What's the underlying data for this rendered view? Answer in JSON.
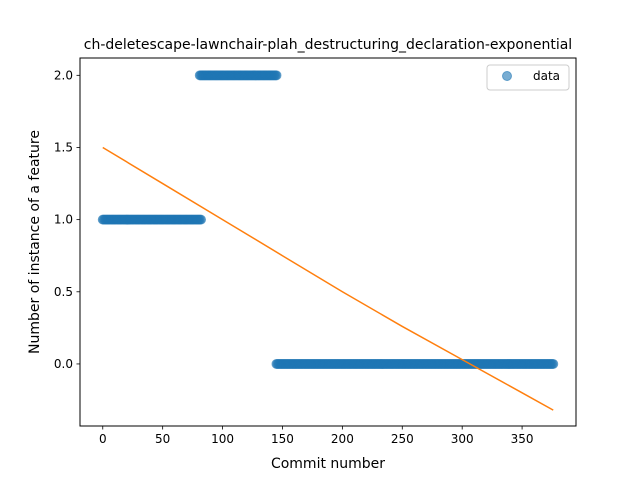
{
  "chart_data": {
    "type": "scatter",
    "title": "ch-deletescape-lawnchair-plah_destructuring_declaration-exponential",
    "xlabel": "Commit number",
    "ylabel": "Number of instance of a feature",
    "xlim": [
      -19,
      395
    ],
    "ylim": [
      -0.43,
      2.12
    ],
    "xticks": [
      0,
      50,
      100,
      150,
      200,
      250,
      300,
      350
    ],
    "xtick_labels": [
      "0",
      "50",
      "100",
      "150",
      "200",
      "250",
      "300",
      "350"
    ],
    "yticks": [
      0.0,
      0.5,
      1.0,
      1.5,
      2.0
    ],
    "ytick_labels": [
      "0.0",
      "0.5",
      "1.0",
      "1.5",
      "2.0"
    ],
    "grid": false,
    "legend": {
      "position": "top-right",
      "entries": [
        "data"
      ]
    },
    "colors": {
      "data": "#1f77b4",
      "fit": "#ff7f0e"
    },
    "series": [
      {
        "name": "data",
        "kind": "scatter",
        "segments": [
          {
            "x_start": 0,
            "x_end": 82,
            "y": 1.0
          },
          {
            "x_start": 81,
            "x_end": 145,
            "y": 2.0
          },
          {
            "x_start": 145,
            "x_end": 376,
            "y": 0.0
          }
        ]
      },
      {
        "kind": "line",
        "x": [
          0,
          50,
          100,
          150,
          200,
          250,
          300,
          350,
          376
        ],
        "y": [
          1.5,
          1.25,
          1.0,
          0.75,
          0.5,
          0.26,
          0.03,
          -0.2,
          -0.32
        ]
      }
    ]
  }
}
